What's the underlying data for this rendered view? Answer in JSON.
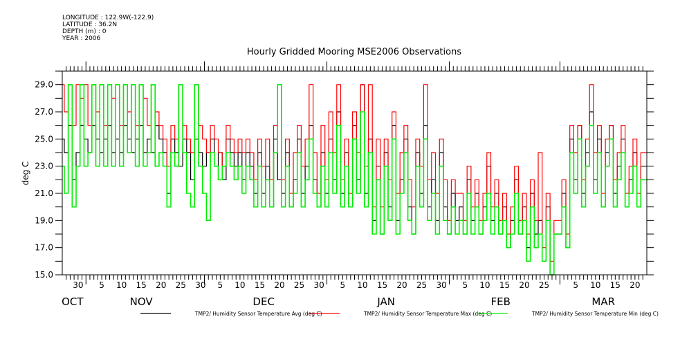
{
  "header": {
    "longitude": "LONGITUDE : 122.9W(-122.9)",
    "latitude": "LATITUDE : 36.2N",
    "depth": "DEPTH (m) : 0",
    "year": "YEAR : 2006"
  },
  "chart_data": {
    "type": "line",
    "title": "Hourly Gridded Mooring MSE2006 Observations",
    "ylabel": "deg C",
    "xlabel": "",
    "ylim": [
      15,
      30
    ],
    "xlim_days": [
      0,
      148
    ],
    "x_start": "Oct 26",
    "x_step": "1 day",
    "yticks": [
      "15.0",
      "17.0",
      "19.0",
      "21.0",
      "23.0",
      "25.0",
      "27.0",
      "29.0"
    ],
    "ytick_values": [
      15,
      17,
      19,
      21,
      23,
      25,
      27,
      29
    ],
    "xticks": [
      {
        "day": 4,
        "label": "30"
      },
      {
        "day": 10,
        "label": "5"
      },
      {
        "day": 15,
        "label": "10"
      },
      {
        "day": 20,
        "label": "15"
      },
      {
        "day": 25,
        "label": "20"
      },
      {
        "day": 30,
        "label": "25"
      },
      {
        "day": 35,
        "label": "30"
      },
      {
        "day": 40,
        "label": "5"
      },
      {
        "day": 45,
        "label": "10"
      },
      {
        "day": 50,
        "label": "15"
      },
      {
        "day": 55,
        "label": "20"
      },
      {
        "day": 60,
        "label": "25"
      },
      {
        "day": 65,
        "label": "30"
      },
      {
        "day": 71,
        "label": "5"
      },
      {
        "day": 76,
        "label": "10"
      },
      {
        "day": 81,
        "label": "15"
      },
      {
        "day": 86,
        "label": "20"
      },
      {
        "day": 91,
        "label": "25"
      },
      {
        "day": 96,
        "label": "30"
      },
      {
        "day": 102,
        "label": "5"
      },
      {
        "day": 107,
        "label": "10"
      },
      {
        "day": 112,
        "label": "15"
      },
      {
        "day": 117,
        "label": "20"
      },
      {
        "day": 122,
        "label": "25"
      },
      {
        "day": 130,
        "label": "5"
      },
      {
        "day": 135,
        "label": "10"
      },
      {
        "day": 140,
        "label": "15"
      },
      {
        "day": 145,
        "label": "20"
      }
    ],
    "months": [
      {
        "day": 2.6,
        "label": "OCT"
      },
      {
        "day": 20,
        "label": "NOV"
      },
      {
        "day": 51,
        "label": "DEC"
      },
      {
        "day": 82,
        "label": "JAN"
      },
      {
        "day": 111,
        "label": "FEB"
      },
      {
        "day": 137,
        "label": "MAR"
      }
    ],
    "month_starts": [
      6,
      36,
      67,
      98,
      126
    ],
    "series": [
      {
        "name": "TMP2/ Humidity Sensor Temperature Avg (deg C)",
        "color": "#000000",
        "values": [
          25,
          24,
          26,
          22,
          24,
          26,
          25,
          24,
          26,
          25,
          24,
          25,
          26,
          24,
          25,
          24,
          26,
          25,
          24,
          25,
          26,
          24,
          25,
          24,
          26,
          25,
          24,
          21,
          25,
          24,
          23,
          25,
          24,
          22,
          25,
          24,
          23,
          24,
          25,
          23,
          24,
          22,
          25,
          24,
          23,
          24,
          22,
          24,
          23,
          21,
          24,
          21,
          23,
          20,
          25,
          22,
          21,
          24,
          20,
          22,
          25,
          21,
          23,
          26,
          22,
          20,
          24,
          21,
          25,
          22,
          27,
          21,
          24,
          20,
          26,
          22,
          29,
          21,
          25,
          19,
          23,
          18,
          24,
          20,
          26,
          19,
          22,
          25,
          20,
          18,
          24,
          21,
          26,
          20,
          22,
          19,
          24,
          20,
          18,
          21,
          19,
          20,
          18,
          22,
          19,
          21,
          18,
          20,
          23,
          19,
          21,
          18,
          20,
          17,
          19,
          22,
          18,
          20,
          17,
          21,
          18,
          19,
          16,
          20,
          15,
          18,
          18,
          21,
          17,
          25,
          22,
          26,
          21,
          24,
          27,
          22,
          25,
          20,
          24,
          26,
          21,
          23,
          25,
          20,
          22,
          24,
          20,
          23
        ]
      },
      {
        "name": "TMP2/ Humidity Sensor Temperature Max (deg C)",
        "color": "#ff0000",
        "values": [
          29,
          27,
          29,
          26,
          29,
          28,
          29,
          26,
          29,
          27,
          29,
          26,
          29,
          28,
          29,
          26,
          29,
          27,
          29,
          26,
          29,
          28,
          26,
          29,
          27,
          26,
          25,
          23,
          26,
          25,
          29,
          26,
          25,
          24,
          29,
          26,
          25,
          24,
          26,
          25,
          24,
          23,
          26,
          25,
          24,
          25,
          24,
          25,
          24,
          22,
          25,
          23,
          25,
          22,
          26,
          29,
          22,
          25,
          21,
          24,
          26,
          23,
          25,
          29,
          24,
          21,
          26,
          22,
          27,
          24,
          29,
          22,
          25,
          21,
          27,
          24,
          29,
          23,
          29,
          20,
          25,
          20,
          25,
          22,
          27,
          21,
          24,
          26,
          22,
          20,
          25,
          23,
          29,
          22,
          24,
          21,
          25,
          22,
          19,
          22,
          21,
          21,
          19,
          23,
          20,
          22,
          19,
          21,
          24,
          20,
          22,
          19,
          21,
          18,
          20,
          23,
          19,
          21,
          18,
          22,
          19,
          24,
          17,
          21,
          16,
          19,
          19,
          22,
          18,
          26,
          24,
          26,
          22,
          25,
          29,
          24,
          26,
          21,
          25,
          26,
          22,
          24,
          26,
          21,
          23,
          25,
          21,
          24
        ]
      },
      {
        "name": "TMP2/ Humidity Sensor Temperature Min (deg C)",
        "color": "#00ee00",
        "values": [
          23,
          21,
          29,
          20,
          23,
          29,
          23,
          24,
          29,
          23,
          29,
          23,
          29,
          23,
          29,
          23,
          29,
          24,
          29,
          23,
          29,
          23,
          24,
          29,
          23,
          24,
          23,
          20,
          24,
          23,
          29,
          24,
          21,
          20,
          29,
          23,
          21,
          19,
          24,
          23,
          22,
          23,
          24,
          23,
          22,
          23,
          21,
          23,
          22,
          20,
          23,
          20,
          22,
          20,
          24,
          29,
          20,
          23,
          20,
          21,
          24,
          20,
          22,
          25,
          21,
          20,
          23,
          20,
          24,
          21,
          26,
          20,
          23,
          20,
          25,
          21,
          27,
          20,
          24,
          18,
          22,
          18,
          23,
          19,
          25,
          18,
          21,
          24,
          19,
          18,
          23,
          20,
          25,
          19,
          21,
          18,
          23,
          19,
          18,
          20,
          18,
          19,
          18,
          21,
          18,
          20,
          18,
          19,
          21,
          18,
          20,
          18,
          19,
          17,
          18,
          21,
          18,
          19,
          16,
          20,
          17,
          18,
          16,
          19,
          15,
          18,
          18,
          20,
          17,
          24,
          21,
          25,
          20,
          23,
          26,
          21,
          24,
          20,
          23,
          25,
          20,
          22,
          24,
          20,
          21,
          23,
          20,
          22
        ]
      }
    ]
  }
}
